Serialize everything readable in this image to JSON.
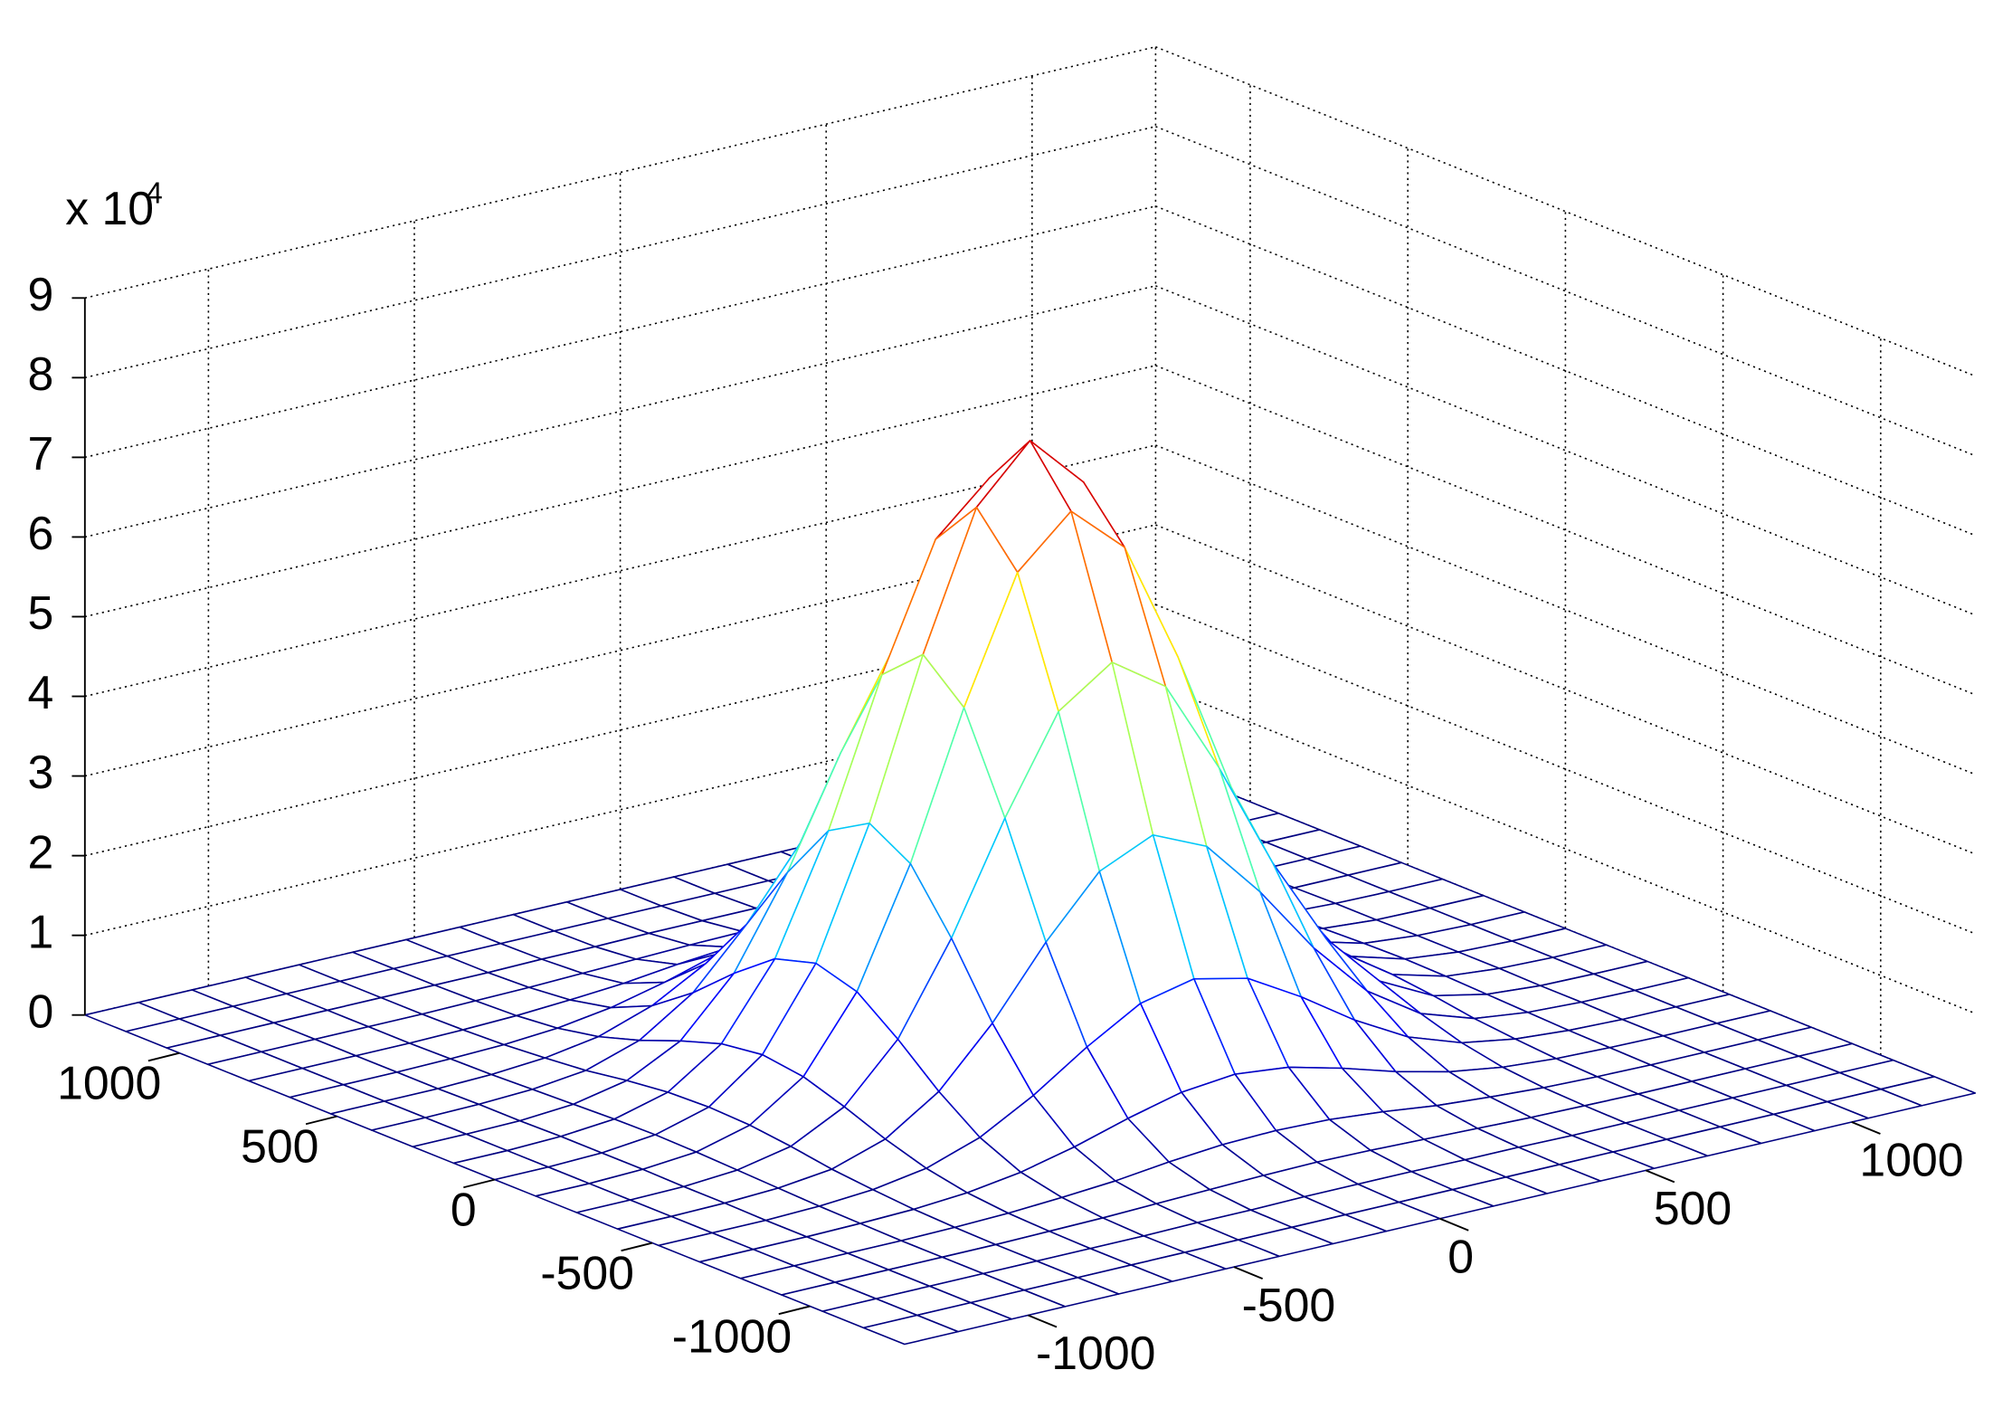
{
  "chart_data": {
    "type": "mesh",
    "zlabel_base": "x 10",
    "zlabel_exponent": "4",
    "x": [
      -1300,
      -1170,
      -1040,
      -910,
      -780,
      -650,
      -520,
      -390,
      -260,
      -130,
      0,
      130,
      260,
      390,
      520,
      650,
      780,
      910,
      1040,
      1170,
      1300
    ],
    "y": [
      -1300,
      -1170,
      -1040,
      -910,
      -780,
      -650,
      -520,
      -390,
      -260,
      -130,
      0,
      130,
      260,
      390,
      520,
      650,
      780,
      910,
      1040,
      1170,
      1300
    ],
    "z": [
      [
        0,
        0,
        0,
        0,
        0,
        0,
        0,
        0,
        0,
        0,
        0,
        0,
        0,
        0,
        0,
        0,
        0,
        0,
        0,
        0,
        0
      ],
      [
        0,
        0,
        0,
        0,
        0,
        0,
        0,
        0,
        0,
        0,
        0,
        0,
        0,
        0,
        0,
        0,
        0,
        0,
        0,
        0,
        0
      ],
      [
        0,
        0,
        0,
        0,
        0,
        0,
        0,
        0.01,
        0.01,
        0.02,
        0.02,
        0.02,
        0.01,
        0.01,
        0,
        0,
        0,
        0,
        0,
        0,
        0
      ],
      [
        0,
        0,
        0,
        0,
        0,
        0.01,
        0.02,
        0.04,
        0.06,
        0.08,
        0.09,
        0.08,
        0.06,
        0.04,
        0.02,
        0.01,
        0,
        0,
        0,
        0,
        0
      ],
      [
        0,
        0,
        0,
        0,
        0.01,
        0.03,
        0.07,
        0.12,
        0.2,
        0.26,
        0.28,
        0.26,
        0.2,
        0.12,
        0.07,
        0.03,
        0.01,
        0,
        0,
        0,
        0
      ],
      [
        0,
        0,
        0,
        0.01,
        0.03,
        0.08,
        0.18,
        0.34,
        0.54,
        0.71,
        0.78,
        0.71,
        0.54,
        0.34,
        0.18,
        0.08,
        0.03,
        0.01,
        0,
        0,
        0
      ],
      [
        0,
        0,
        0,
        0.02,
        0.07,
        0.18,
        0.41,
        0.78,
        1.23,
        1.62,
        1.77,
        1.62,
        1.23,
        0.78,
        0.41,
        0.18,
        0.07,
        0.02,
        0,
        0,
        0
      ],
      [
        0,
        0,
        0.01,
        0.04,
        0.12,
        0.34,
        0.78,
        1.48,
        2.34,
        3.07,
        3.37,
        3.07,
        2.34,
        1.48,
        0.78,
        0.34,
        0.12,
        0.04,
        0.01,
        0,
        0
      ],
      [
        0,
        0,
        0.01,
        0.06,
        0.2,
        0.54,
        1.23,
        2.34,
        3.69,
        4.87,
        5.33,
        4.87,
        3.69,
        2.34,
        1.23,
        0.54,
        0.2,
        0.06,
        0.01,
        0,
        0
      ],
      [
        0,
        0,
        0.02,
        0.08,
        0.26,
        0.71,
        1.62,
        3.07,
        4.87,
        6.41,
        7.02,
        6.41,
        4.87,
        3.07,
        1.62,
        0.71,
        0.26,
        0.08,
        0.02,
        0,
        0
      ],
      [
        0,
        0,
        0.02,
        0.09,
        0.28,
        0.78,
        1.77,
        3.37,
        5.33,
        7.02,
        7.7,
        7.02,
        5.33,
        3.37,
        1.77,
        0.78,
        0.28,
        0.09,
        0.02,
        0,
        0
      ],
      [
        0,
        0,
        0.02,
        0.08,
        0.26,
        0.71,
        1.62,
        3.07,
        4.87,
        6.41,
        7.02,
        6.41,
        4.87,
        3.07,
        1.62,
        0.71,
        0.26,
        0.08,
        0.02,
        0,
        0
      ],
      [
        0,
        0,
        0.01,
        0.06,
        0.2,
        0.54,
        1.23,
        2.34,
        3.69,
        4.87,
        5.33,
        4.87,
        3.69,
        2.34,
        1.23,
        0.54,
        0.2,
        0.06,
        0.01,
        0,
        0
      ],
      [
        0,
        0,
        0.01,
        0.04,
        0.12,
        0.34,
        0.78,
        1.48,
        2.34,
        3.07,
        3.37,
        3.07,
        2.34,
        1.48,
        0.78,
        0.34,
        0.12,
        0.04,
        0.01,
        0,
        0
      ],
      [
        0,
        0,
        0,
        0.02,
        0.07,
        0.18,
        0.41,
        0.78,
        1.23,
        1.62,
        1.77,
        1.62,
        1.23,
        0.78,
        0.41,
        0.18,
        0.07,
        0.02,
        0,
        0,
        0
      ],
      [
        0,
        0,
        0,
        0.01,
        0.03,
        0.08,
        0.18,
        0.34,
        0.54,
        0.71,
        0.78,
        0.71,
        0.54,
        0.34,
        0.18,
        0.08,
        0.03,
        0.01,
        0,
        0,
        0
      ],
      [
        0,
        0,
        0,
        0,
        0.01,
        0.03,
        0.07,
        0.12,
        0.2,
        0.26,
        0.28,
        0.26,
        0.2,
        0.12,
        0.07,
        0.03,
        0.01,
        0,
        0,
        0,
        0
      ],
      [
        0,
        0,
        0,
        0,
        0,
        0.01,
        0.02,
        0.04,
        0.06,
        0.08,
        0.09,
        0.08,
        0.06,
        0.04,
        0.02,
        0.01,
        0,
        0,
        0,
        0,
        0
      ],
      [
        0,
        0,
        0,
        0,
        0,
        0,
        0,
        0.01,
        0.01,
        0.02,
        0.02,
        0.02,
        0.01,
        0.01,
        0,
        0,
        0,
        0,
        0,
        0,
        0
      ],
      [
        0,
        0,
        0,
        0,
        0,
        0,
        0,
        0,
        0,
        0,
        0,
        0,
        0,
        0,
        0,
        0,
        0,
        0,
        0,
        0,
        0
      ],
      [
        0,
        0,
        0,
        0,
        0,
        0,
        0,
        0,
        0,
        0,
        0,
        0,
        0,
        0,
        0,
        0,
        0,
        0,
        0,
        0,
        0
      ]
    ],
    "xlim": [
      -1300,
      1300
    ],
    "ylim": [
      -1300,
      1300
    ],
    "zlim": [
      0,
      9
    ],
    "xticks": [
      -1000,
      -500,
      0,
      500,
      1000
    ],
    "yticks": [
      -1000,
      -500,
      0,
      500,
      1000
    ],
    "zticks": [
      0,
      1,
      2,
      3,
      4,
      5,
      6,
      7,
      8,
      9
    ],
    "grid": true,
    "colormap": "jet"
  }
}
